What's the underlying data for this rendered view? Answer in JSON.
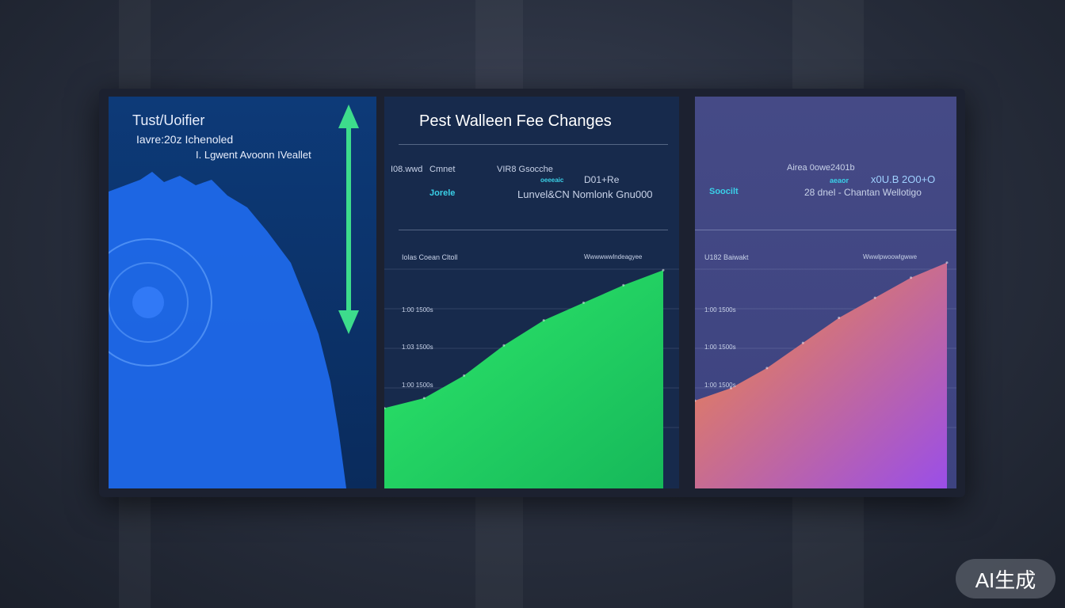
{
  "left_panel": {
    "title": "Tust/Uoifier",
    "subtitle": "Iavre:20z Ichenoled",
    "caption": "I. Lgwent Avoonn IVeallet"
  },
  "middle_panel": {
    "title": "Pest Walleen Fee Changes",
    "labels": [
      "I08.wwd",
      "Cmnet",
      "VIR8 Gsocche",
      "oeeeaic",
      "D01+Re",
      "Jorele",
      "Lunvel&CN Nomlonk Gnu000"
    ],
    "chart_label_left": "Iolas Coean Cltoll",
    "chart_label_right": "Wwwwwwlndeagyee",
    "y_ticks": [
      "1:00 1500s",
      "1:03 1500s",
      "1:00 1500s"
    ]
  },
  "right_panel": {
    "labels": [
      "Airea 0owe2401b",
      "aeaor",
      "x0U.B 2O0+O",
      "Soocilt",
      "28 dnel - Chantan Wellotigo"
    ],
    "chart_label_left": "U182 Baiwakt",
    "chart_label_right": "Wwwlpwoowlgwwe",
    "y_ticks": [
      "1:00 1500s",
      "1:00 1500s",
      "1:00 1500s"
    ]
  },
  "badge": "AI生成",
  "colors": {
    "green": "#2ee86a",
    "orange": "#f58a3a",
    "purple": "#9a4ee8",
    "blue": "#1f6cf0",
    "accent_arrow": "#3ddc8c"
  },
  "chart_data": [
    {
      "type": "area",
      "title": "Pest Walleen Fee Changes",
      "xlabel": "",
      "ylabel": "",
      "series": [
        {
          "values": [
            32,
            36,
            45,
            57,
            67,
            74,
            81,
            87
          ]
        }
      ],
      "ylim": [
        0,
        100
      ],
      "grid": true
    },
    {
      "type": "area",
      "title": "",
      "xlabel": "",
      "ylabel": "",
      "series": [
        {
          "values": [
            35,
            40,
            48,
            58,
            68,
            76,
            84,
            90
          ]
        }
      ],
      "ylim": [
        0,
        100
      ],
      "grid": true
    }
  ]
}
